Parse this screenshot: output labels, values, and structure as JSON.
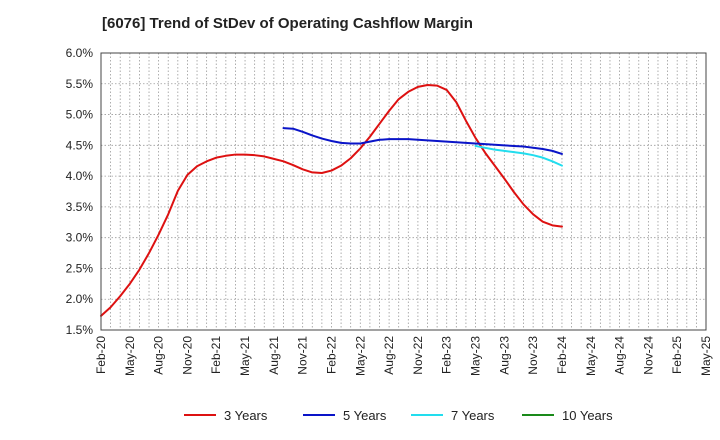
{
  "title": "[6076]  Trend of StDev of Operating Cashflow Margin",
  "chart_data": {
    "type": "line",
    "title": "[6076]  Trend of StDev of Operating Cashflow Margin",
    "x_labels": [
      "Feb-20",
      "May-20",
      "Aug-20",
      "Nov-20",
      "Feb-21",
      "May-21",
      "Aug-21",
      "Nov-21",
      "Feb-22",
      "May-22",
      "Aug-22",
      "Nov-22",
      "Feb-23",
      "May-23",
      "Aug-23",
      "Nov-23",
      "Feb-24",
      "May-24",
      "Aug-24",
      "Nov-24",
      "Feb-25",
      "May-25"
    ],
    "y_tick_labels": [
      "1.5%",
      "2.0%",
      "2.5%",
      "3.0%",
      "3.5%",
      "4.0%",
      "4.5%",
      "5.0%",
      "5.5%",
      "6.0%"
    ],
    "ylim": [
      1.5,
      6.0
    ],
    "grid": true,
    "legend_position": "bottom",
    "series": [
      {
        "name": "3 Years",
        "color": "#dd1111",
        "values": [
          1.73,
          1.87,
          2.05,
          2.25,
          2.48,
          2.75,
          3.05,
          3.38,
          3.76,
          4.02,
          4.16,
          4.24,
          4.3,
          4.33,
          4.35,
          4.35,
          4.34,
          4.32,
          4.28,
          4.24,
          4.18,
          4.11,
          4.06,
          4.05,
          4.09,
          4.17,
          4.29,
          4.45,
          4.64,
          4.85,
          5.06,
          5.25,
          5.37,
          5.45,
          5.48,
          5.47,
          5.4,
          5.2,
          4.9,
          4.62,
          4.38,
          4.17,
          3.96,
          3.74,
          3.54,
          3.38,
          3.26,
          3.2,
          3.18
        ]
      },
      {
        "name": "5 Years",
        "color": "#0a14c8",
        "values": [
          null,
          null,
          null,
          null,
          null,
          null,
          null,
          null,
          null,
          null,
          null,
          null,
          null,
          null,
          null,
          null,
          null,
          null,
          null,
          4.78,
          4.77,
          4.72,
          4.66,
          4.61,
          4.57,
          4.54,
          4.53,
          4.53,
          4.56,
          4.59,
          4.6,
          4.6,
          4.6,
          4.59,
          4.58,
          4.57,
          4.56,
          4.55,
          4.54,
          4.53,
          4.52,
          4.51,
          4.5,
          4.49,
          4.48,
          4.46,
          4.44,
          4.41,
          4.36
        ]
      },
      {
        "name": "7 Years",
        "color": "#22ddee",
        "values": [
          null,
          null,
          null,
          null,
          null,
          null,
          null,
          null,
          null,
          null,
          null,
          null,
          null,
          null,
          null,
          null,
          null,
          null,
          null,
          null,
          null,
          null,
          null,
          null,
          null,
          null,
          null,
          null,
          null,
          null,
          null,
          null,
          null,
          null,
          null,
          null,
          null,
          null,
          null,
          4.49,
          4.46,
          4.43,
          4.41,
          4.39,
          4.37,
          4.34,
          4.3,
          4.24,
          4.17
        ]
      },
      {
        "name": "10 Years",
        "color": "#1a8a1a",
        "values": []
      }
    ]
  }
}
